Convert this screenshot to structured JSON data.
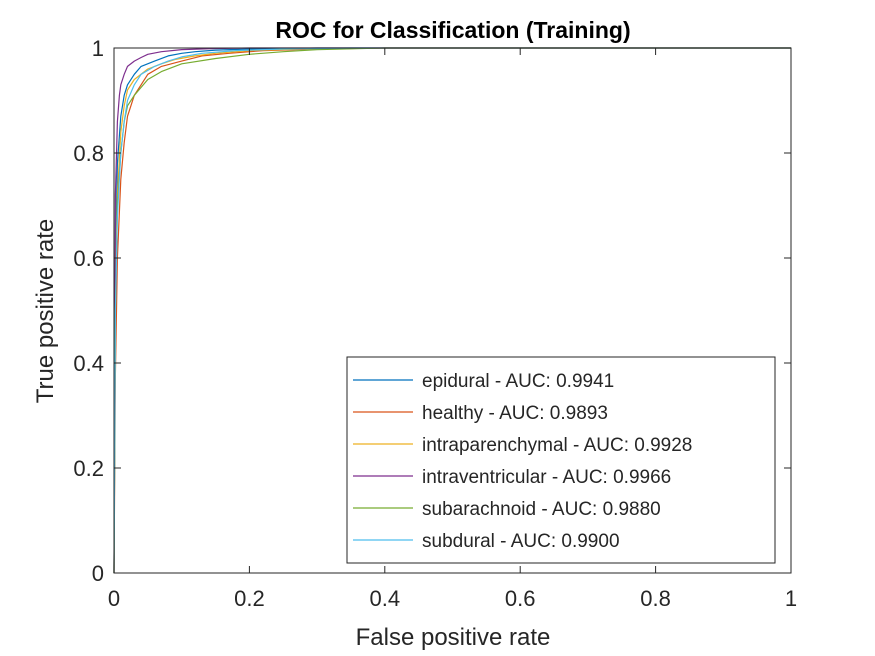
{
  "chart_data": {
    "type": "line",
    "title": "ROC for Classification (Training)",
    "xlabel": "False positive rate",
    "ylabel": "True positive rate",
    "xlim": [
      0,
      1
    ],
    "ylim": [
      0,
      1
    ],
    "xticks": [
      0,
      0.2,
      0.4,
      0.6,
      0.8,
      1
    ],
    "yticks": [
      0,
      0.2,
      0.4,
      0.6,
      0.8,
      1
    ],
    "xtick_labels": [
      "0",
      "0.2",
      "0.4",
      "0.6",
      "0.8",
      "1"
    ],
    "ytick_labels": [
      "0",
      "0.2",
      "0.4",
      "0.6",
      "0.8",
      "1"
    ],
    "grid": false,
    "legend_position": "bottom-right",
    "series": [
      {
        "name": "epidural - AUC: 0.9941",
        "color": "#0072BD",
        "x": [
          0,
          0.002,
          0.005,
          0.01,
          0.015,
          0.02,
          0.03,
          0.04,
          0.06,
          0.08,
          0.1,
          0.12,
          0.15,
          0.2,
          0.3,
          1
        ],
        "y": [
          0,
          0.6,
          0.78,
          0.87,
          0.91,
          0.93,
          0.95,
          0.965,
          0.975,
          0.985,
          0.99,
          0.993,
          0.996,
          0.998,
          1,
          1
        ]
      },
      {
        "name": "healthy - AUC: 0.9893",
        "color": "#D95319",
        "x": [
          0,
          0.002,
          0.005,
          0.01,
          0.015,
          0.02,
          0.03,
          0.04,
          0.05,
          0.07,
          0.1,
          0.13,
          0.17,
          0.22,
          0.3,
          0.4,
          1
        ],
        "y": [
          0,
          0.38,
          0.6,
          0.75,
          0.82,
          0.87,
          0.91,
          0.93,
          0.95,
          0.965,
          0.975,
          0.985,
          0.99,
          0.995,
          0.998,
          1,
          1
        ]
      },
      {
        "name": "intraparenchymal - AUC: 0.9928",
        "color": "#EDB120",
        "x": [
          0,
          0.002,
          0.005,
          0.01,
          0.015,
          0.02,
          0.03,
          0.05,
          0.07,
          0.09,
          0.12,
          0.15,
          0.2,
          0.3,
          0.4,
          1
        ],
        "y": [
          0,
          0.55,
          0.72,
          0.84,
          0.89,
          0.92,
          0.94,
          0.96,
          0.97,
          0.978,
          0.985,
          0.99,
          0.995,
          0.999,
          1,
          1
        ]
      },
      {
        "name": "intraventricular - AUC: 0.9966",
        "color": "#7E2F8E",
        "x": [
          0,
          0.002,
          0.005,
          0.008,
          0.01,
          0.015,
          0.02,
          0.03,
          0.04,
          0.05,
          0.07,
          0.1,
          0.15,
          0.2,
          1
        ],
        "y": [
          0,
          0.72,
          0.86,
          0.91,
          0.93,
          0.95,
          0.965,
          0.975,
          0.982,
          0.988,
          0.993,
          0.997,
          0.999,
          1,
          1
        ]
      },
      {
        "name": "subarachnoid - AUC: 0.9880",
        "color": "#77AC30",
        "x": [
          0,
          0.002,
          0.005,
          0.01,
          0.015,
          0.02,
          0.03,
          0.04,
          0.05,
          0.07,
          0.1,
          0.15,
          0.2,
          0.25,
          0.3,
          0.4,
          1
        ],
        "y": [
          0,
          0.5,
          0.7,
          0.8,
          0.86,
          0.89,
          0.91,
          0.925,
          0.94,
          0.955,
          0.97,
          0.98,
          0.988,
          0.993,
          0.997,
          1,
          1
        ]
      },
      {
        "name": "subdural - AUC: 0.9900",
        "color": "#4DBEEE",
        "x": [
          0,
          0.002,
          0.005,
          0.01,
          0.015,
          0.02,
          0.03,
          0.04,
          0.06,
          0.08,
          0.1,
          0.13,
          0.18,
          0.25,
          0.35,
          1
        ],
        "y": [
          0,
          0.5,
          0.68,
          0.8,
          0.86,
          0.9,
          0.93,
          0.95,
          0.965,
          0.975,
          0.983,
          0.99,
          0.995,
          0.998,
          1,
          1
        ]
      }
    ]
  }
}
